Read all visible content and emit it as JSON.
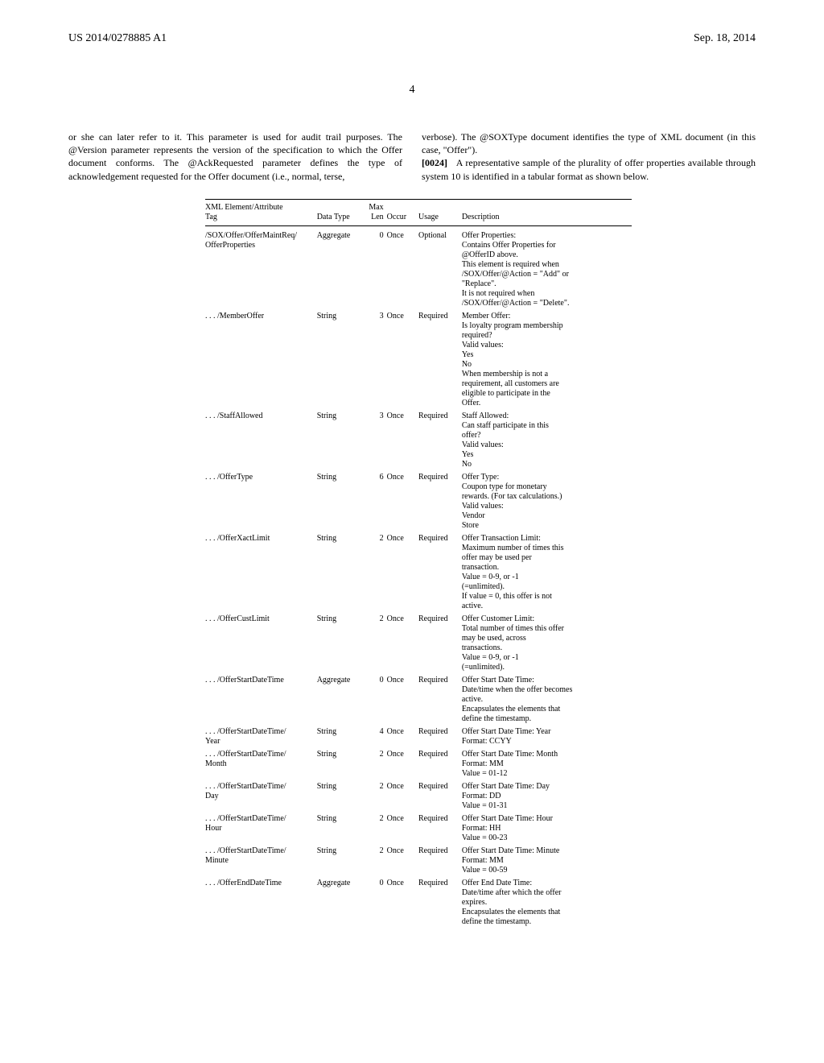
{
  "header": {
    "pub_number": "US 2014/0278885 A1",
    "pub_date": "Sep. 18, 2014",
    "page_number": "4"
  },
  "body": {
    "left_col": "or she can later refer to it. This parameter is used for audit trail purposes. The @Version parameter represents the version of the specification to which the Offer document conforms. The @AckRequested parameter defines the type of acknowledgement requested for the Offer document (i.e., normal, terse,",
    "right_col_1": "verbose). The @SOXType document identifies the type of XML document (in this case, \"Offer\").",
    "para_ref": "[0024]",
    "right_col_2": "A representative sample of the plurality of offer properties available through system 10 is identified in a tabular format as shown below."
  },
  "table": {
    "headers": {
      "tag": "XML Element/Attribute\nTag",
      "type": "Data Type",
      "len": "Max\nLen",
      "occur": "Occur",
      "usage": "Usage",
      "desc": "Description"
    },
    "rows": [
      {
        "tag": "/SOX/Offer/OfferMaintReq/\nOfferProperties",
        "type": "Aggregate",
        "len": "0",
        "occur": "Once",
        "usage": "Optional",
        "desc": "Offer Properties:\nContains Offer Properties for\n@OfferID above.\nThis element is required when\n/SOX/Offer/@Action = \"Add\" or\n\"Replace\".\nIt is not required when\n/SOX/Offer/@Action = \"Delete\"."
      },
      {
        "tag": ". . . /MemberOffer",
        "type": "String",
        "len": "3",
        "occur": "Once",
        "usage": "Required",
        "desc": "Member Offer:\nIs loyalty program membership\nrequired?\nValid values:\nYes\nNo\nWhen membership is not a\nrequirement, all customers are\neligible to participate in the\nOffer."
      },
      {
        "tag": ". . . /StaffAllowed",
        "type": "String",
        "len": "3",
        "occur": "Once",
        "usage": "Required",
        "desc": "Staff Allowed:\nCan staff participate in this\noffer?\nValid values:\nYes\nNo"
      },
      {
        "tag": ". . . /OfferType",
        "type": "String",
        "len": "6",
        "occur": "Once",
        "usage": "Required",
        "desc": "Offer Type:\nCoupon type for monetary\nrewards. (For tax calculations.)\nValid values:\nVendor\nStore"
      },
      {
        "tag": ". . . /OfferXactLimit",
        "type": "String",
        "len": "2",
        "occur": "Once",
        "usage": "Required",
        "desc": "Offer Transaction Limit:\nMaximum number of times this\noffer may be used per\ntransaction.\nValue = 0-9, or -1\n(=unlimited).\nIf value = 0, this offer is not\nactive."
      },
      {
        "tag": ". . . /OfferCustLimit",
        "type": "String",
        "len": "2",
        "occur": "Once",
        "usage": "Required",
        "desc": "Offer Customer Limit:\nTotal number of times this offer\nmay be used, across\ntransactions.\nValue = 0-9, or -1\n(=unlimited)."
      },
      {
        "tag": ". . . /OfferStartDateTime",
        "type": "Aggregate",
        "len": "0",
        "occur": "Once",
        "usage": "Required",
        "desc": "Offer Start Date Time:\nDate/time when the offer becomes\nactive.\nEncapsulates the elements that\ndefine the timestamp."
      },
      {
        "tag": ". . . /OfferStartDateTime/\nYear",
        "type": "String",
        "len": "4",
        "occur": "Once",
        "usage": "Required",
        "desc": "Offer Start Date Time: Year\nFormat: CCYY"
      },
      {
        "tag": ". . . /OfferStartDateTime/\nMonth",
        "type": "String",
        "len": "2",
        "occur": "Once",
        "usage": "Required",
        "desc": "Offer Start Date Time: Month\nFormat: MM\nValue = 01-12"
      },
      {
        "tag": ". . . /OfferStartDateTime/\nDay",
        "type": "String",
        "len": "2",
        "occur": "Once",
        "usage": "Required",
        "desc": "Offer Start Date Time: Day\nFormat: DD\nValue = 01-31"
      },
      {
        "tag": ". . . /OfferStartDateTime/\nHour",
        "type": "String",
        "len": "2",
        "occur": "Once",
        "usage": "Required",
        "desc": "Offer Start Date Time: Hour\nFormat: HH\nValue = 00-23"
      },
      {
        "tag": ". . . /OfferStartDateTime/\nMinute",
        "type": "String",
        "len": "2",
        "occur": "Once",
        "usage": "Required",
        "desc": "Offer Start Date Time: Minute\nFormat: MM\nValue = 00-59"
      },
      {
        "tag": ". . . /OfferEndDateTime",
        "type": "Aggregate",
        "len": "0",
        "occur": "Once",
        "usage": "Required",
        "desc": "Offer End Date Time:\nDate/time after which the offer\nexpires.\nEncapsulates the elements that\ndefine the timestamp."
      }
    ]
  }
}
